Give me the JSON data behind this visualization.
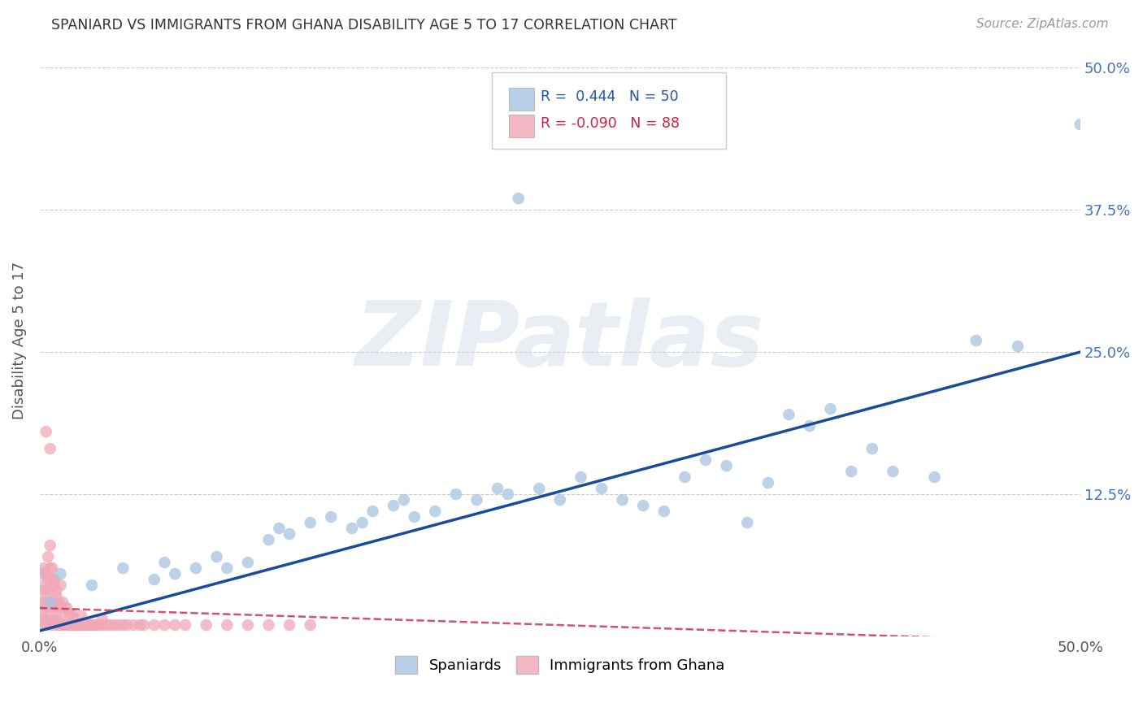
{
  "title": "SPANIARD VS IMMIGRANTS FROM GHANA DISABILITY AGE 5 TO 17 CORRELATION CHART",
  "source_text": "Source: ZipAtlas.com",
  "ylabel": "Disability Age 5 to 17",
  "xlim": [
    0.0,
    0.5
  ],
  "ylim": [
    0.0,
    0.52
  ],
  "xtick_vals": [
    0.0,
    0.125,
    0.25,
    0.375,
    0.5
  ],
  "xticklabels": [
    "0.0%",
    "",
    "",
    "",
    "50.0%"
  ],
  "ytick_vals": [
    0.0,
    0.125,
    0.25,
    0.375,
    0.5
  ],
  "yticklabels_right": [
    "",
    "12.5%",
    "25.0%",
    "37.5%",
    "50.0%"
  ],
  "legend_r_blue": "R =  0.444",
  "legend_n_blue": "N = 50",
  "legend_r_pink": "R = -0.090",
  "legend_n_pink": "N = 88",
  "blue_scatter_color": "#a8c4e0",
  "pink_scatter_color": "#f0a8b8",
  "blue_line_color": "#1a4a9a",
  "pink_line_color": "#cc3355",
  "blue_legend_fill": "#b8d0e8",
  "pink_legend_fill": "#f4b8c4",
  "legend_edge_color": "#bbbbbb",
  "grid_color": "#cccccc",
  "bg_color": "#ffffff",
  "title_color": "#333333",
  "source_color": "#999999",
  "tick_label_color": "#4472c4",
  "ylabel_color": "#555555",
  "watermark": "ZIPatlas",
  "blue_x": [
    0.005,
    0.01,
    0.025,
    0.04,
    0.055,
    0.06,
    0.065,
    0.075,
    0.085,
    0.09,
    0.1,
    0.11,
    0.115,
    0.12,
    0.13,
    0.14,
    0.15,
    0.155,
    0.16,
    0.17,
    0.175,
    0.18,
    0.19,
    0.2,
    0.21,
    0.22,
    0.225,
    0.23,
    0.24,
    0.25,
    0.26,
    0.27,
    0.28,
    0.29,
    0.3,
    0.31,
    0.32,
    0.33,
    0.34,
    0.35,
    0.36,
    0.37,
    0.38,
    0.39,
    0.4,
    0.41,
    0.43,
    0.45,
    0.47,
    0.5
  ],
  "blue_y": [
    0.03,
    0.055,
    0.045,
    0.06,
    0.05,
    0.065,
    0.055,
    0.06,
    0.07,
    0.06,
    0.065,
    0.085,
    0.095,
    0.09,
    0.1,
    0.105,
    0.095,
    0.1,
    0.11,
    0.115,
    0.12,
    0.105,
    0.11,
    0.125,
    0.12,
    0.13,
    0.125,
    0.385,
    0.13,
    0.12,
    0.14,
    0.13,
    0.12,
    0.115,
    0.11,
    0.14,
    0.155,
    0.15,
    0.1,
    0.135,
    0.195,
    0.185,
    0.2,
    0.145,
    0.165,
    0.145,
    0.14,
    0.26,
    0.255,
    0.45
  ],
  "pink_x": [
    0.001,
    0.001,
    0.001,
    0.001,
    0.001,
    0.002,
    0.002,
    0.002,
    0.002,
    0.003,
    0.003,
    0.003,
    0.003,
    0.004,
    0.004,
    0.004,
    0.005,
    0.005,
    0.005,
    0.005,
    0.005,
    0.006,
    0.006,
    0.006,
    0.007,
    0.007,
    0.007,
    0.008,
    0.008,
    0.009,
    0.009,
    0.01,
    0.01,
    0.01,
    0.011,
    0.011,
    0.012,
    0.012,
    0.013,
    0.013,
    0.014,
    0.014,
    0.015,
    0.015,
    0.016,
    0.016,
    0.017,
    0.018,
    0.019,
    0.02,
    0.02,
    0.021,
    0.022,
    0.023,
    0.024,
    0.025,
    0.026,
    0.027,
    0.028,
    0.03,
    0.03,
    0.032,
    0.034,
    0.036,
    0.038,
    0.04,
    0.042,
    0.045,
    0.048,
    0.05,
    0.055,
    0.06,
    0.065,
    0.07,
    0.08,
    0.09,
    0.1,
    0.11,
    0.12,
    0.13,
    0.003,
    0.004,
    0.005,
    0.006,
    0.007,
    0.008,
    0.009,
    0.01
  ],
  "pink_y": [
    0.01,
    0.02,
    0.03,
    0.04,
    0.055,
    0.015,
    0.03,
    0.045,
    0.06,
    0.01,
    0.025,
    0.04,
    0.055,
    0.015,
    0.03,
    0.05,
    0.01,
    0.025,
    0.04,
    0.06,
    0.08,
    0.015,
    0.03,
    0.05,
    0.01,
    0.025,
    0.045,
    0.015,
    0.035,
    0.01,
    0.03,
    0.01,
    0.025,
    0.045,
    0.01,
    0.03,
    0.01,
    0.025,
    0.01,
    0.025,
    0.01,
    0.02,
    0.01,
    0.02,
    0.01,
    0.018,
    0.01,
    0.01,
    0.01,
    0.01,
    0.018,
    0.01,
    0.01,
    0.01,
    0.01,
    0.01,
    0.01,
    0.01,
    0.01,
    0.01,
    0.015,
    0.01,
    0.01,
    0.01,
    0.01,
    0.01,
    0.01,
    0.01,
    0.01,
    0.01,
    0.01,
    0.01,
    0.01,
    0.01,
    0.01,
    0.01,
    0.01,
    0.01,
    0.01,
    0.01,
    0.18,
    0.07,
    0.165,
    0.06,
    0.05,
    0.04,
    0.025,
    0.015
  ],
  "blue_line_x0": 0.0,
  "blue_line_y0": 0.005,
  "blue_line_x1": 0.5,
  "blue_line_y1": 0.25,
  "pink_line_x0": 0.0,
  "pink_line_y0": 0.025,
  "pink_line_x1": 0.5,
  "pink_line_y1": -0.005
}
